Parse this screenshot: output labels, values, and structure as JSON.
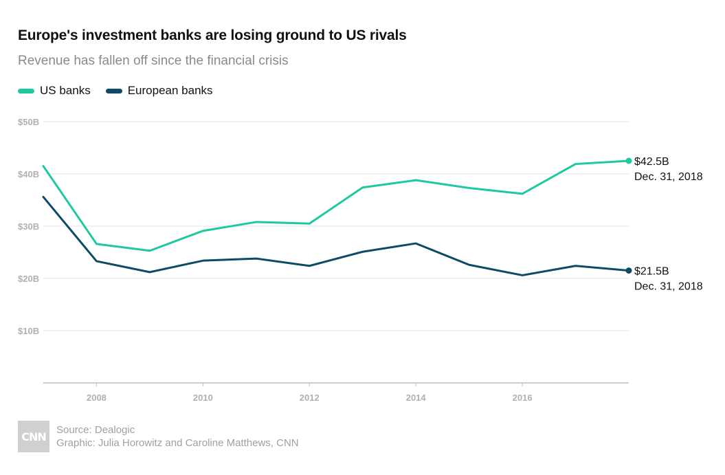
{
  "header": {
    "title": "Europe's investment banks are losing ground to US rivals",
    "subtitle": "Revenue has fallen off since the financial crisis"
  },
  "footer": {
    "logo_text": "CNN",
    "source": "Source: Dealogic",
    "graphic": "Graphic: Julia Horowitz and Caroline Matthews, CNN"
  },
  "chart_data": {
    "type": "line",
    "title": "Europe's investment banks are losing ground to US rivals",
    "subtitle": "Revenue has fallen off since the financial crisis",
    "x": [
      2007,
      2008,
      2009,
      2010,
      2011,
      2012,
      2013,
      2014,
      2015,
      2016,
      2017,
      2018
    ],
    "series": [
      {
        "name": "US banks",
        "color": "#1ec8a0",
        "values": [
          41.5,
          26.6,
          25.3,
          29.1,
          30.8,
          30.5,
          37.4,
          38.8,
          37.3,
          36.2,
          41.9,
          42.5
        ]
      },
      {
        "name": "European banks",
        "color": "#0d4a66",
        "values": [
          35.6,
          23.3,
          21.2,
          23.4,
          23.8,
          22.4,
          25.1,
          26.7,
          22.6,
          20.6,
          22.4,
          21.5
        ]
      }
    ],
    "xlim": [
      2007,
      2018
    ],
    "ylim": [
      0,
      50
    ],
    "yticks": [
      10,
      20,
      30,
      40,
      50
    ],
    "ytick_labels": [
      "$10B",
      "$20B",
      "$30B",
      "$40B",
      "$50B"
    ],
    "xticks": [
      2008,
      2010,
      2012,
      2014,
      2016
    ],
    "xtick_labels": [
      "2008",
      "2010",
      "2012",
      "2014",
      "2016"
    ],
    "annotations": [
      {
        "series": "US banks",
        "value_label": "$42.5B",
        "date_label": "Dec. 31, 2018"
      },
      {
        "series": "European banks",
        "value_label": "$21.5B",
        "date_label": "Dec. 31, 2018"
      }
    ],
    "legend": "top-left",
    "grid": true
  }
}
